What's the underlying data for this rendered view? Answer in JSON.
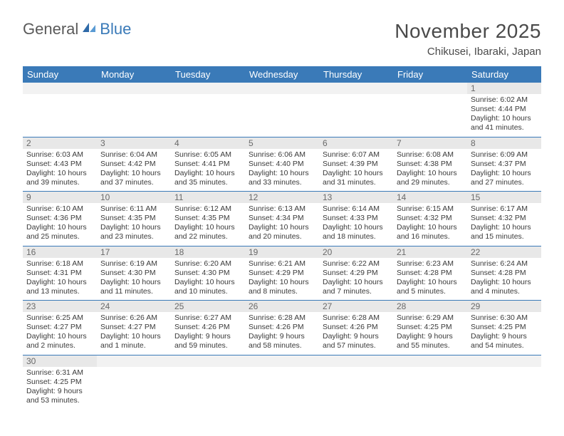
{
  "brand": {
    "part1": "General",
    "part2": "Blue"
  },
  "title": "November 2025",
  "location": "Chikusei, Ibaraki, Japan",
  "colors": {
    "header_bg": "#3a7ab8",
    "header_fg": "#ffffff",
    "daynum_bg": "#e8e8e8",
    "daynum_fg": "#6a6a6a",
    "rule": "#3a7ab8",
    "text": "#3a3a3a",
    "logo_gray": "#5a5a5a",
    "logo_blue": "#3a7ab8"
  },
  "day_headers": [
    "Sunday",
    "Monday",
    "Tuesday",
    "Wednesday",
    "Thursday",
    "Friday",
    "Saturday"
  ],
  "weeks": [
    [
      {
        "n": "",
        "sr": "",
        "ss": "",
        "dl": ""
      },
      {
        "n": "",
        "sr": "",
        "ss": "",
        "dl": ""
      },
      {
        "n": "",
        "sr": "",
        "ss": "",
        "dl": ""
      },
      {
        "n": "",
        "sr": "",
        "ss": "",
        "dl": ""
      },
      {
        "n": "",
        "sr": "",
        "ss": "",
        "dl": ""
      },
      {
        "n": "",
        "sr": "",
        "ss": "",
        "dl": ""
      },
      {
        "n": "1",
        "sr": "Sunrise: 6:02 AM",
        "ss": "Sunset: 4:44 PM",
        "dl": "Daylight: 10 hours and 41 minutes."
      }
    ],
    [
      {
        "n": "2",
        "sr": "Sunrise: 6:03 AM",
        "ss": "Sunset: 4:43 PM",
        "dl": "Daylight: 10 hours and 39 minutes."
      },
      {
        "n": "3",
        "sr": "Sunrise: 6:04 AM",
        "ss": "Sunset: 4:42 PM",
        "dl": "Daylight: 10 hours and 37 minutes."
      },
      {
        "n": "4",
        "sr": "Sunrise: 6:05 AM",
        "ss": "Sunset: 4:41 PM",
        "dl": "Daylight: 10 hours and 35 minutes."
      },
      {
        "n": "5",
        "sr": "Sunrise: 6:06 AM",
        "ss": "Sunset: 4:40 PM",
        "dl": "Daylight: 10 hours and 33 minutes."
      },
      {
        "n": "6",
        "sr": "Sunrise: 6:07 AM",
        "ss": "Sunset: 4:39 PM",
        "dl": "Daylight: 10 hours and 31 minutes."
      },
      {
        "n": "7",
        "sr": "Sunrise: 6:08 AM",
        "ss": "Sunset: 4:38 PM",
        "dl": "Daylight: 10 hours and 29 minutes."
      },
      {
        "n": "8",
        "sr": "Sunrise: 6:09 AM",
        "ss": "Sunset: 4:37 PM",
        "dl": "Daylight: 10 hours and 27 minutes."
      }
    ],
    [
      {
        "n": "9",
        "sr": "Sunrise: 6:10 AM",
        "ss": "Sunset: 4:36 PM",
        "dl": "Daylight: 10 hours and 25 minutes."
      },
      {
        "n": "10",
        "sr": "Sunrise: 6:11 AM",
        "ss": "Sunset: 4:35 PM",
        "dl": "Daylight: 10 hours and 23 minutes."
      },
      {
        "n": "11",
        "sr": "Sunrise: 6:12 AM",
        "ss": "Sunset: 4:35 PM",
        "dl": "Daylight: 10 hours and 22 minutes."
      },
      {
        "n": "12",
        "sr": "Sunrise: 6:13 AM",
        "ss": "Sunset: 4:34 PM",
        "dl": "Daylight: 10 hours and 20 minutes."
      },
      {
        "n": "13",
        "sr": "Sunrise: 6:14 AM",
        "ss": "Sunset: 4:33 PM",
        "dl": "Daylight: 10 hours and 18 minutes."
      },
      {
        "n": "14",
        "sr": "Sunrise: 6:15 AM",
        "ss": "Sunset: 4:32 PM",
        "dl": "Daylight: 10 hours and 16 minutes."
      },
      {
        "n": "15",
        "sr": "Sunrise: 6:17 AM",
        "ss": "Sunset: 4:32 PM",
        "dl": "Daylight: 10 hours and 15 minutes."
      }
    ],
    [
      {
        "n": "16",
        "sr": "Sunrise: 6:18 AM",
        "ss": "Sunset: 4:31 PM",
        "dl": "Daylight: 10 hours and 13 minutes."
      },
      {
        "n": "17",
        "sr": "Sunrise: 6:19 AM",
        "ss": "Sunset: 4:30 PM",
        "dl": "Daylight: 10 hours and 11 minutes."
      },
      {
        "n": "18",
        "sr": "Sunrise: 6:20 AM",
        "ss": "Sunset: 4:30 PM",
        "dl": "Daylight: 10 hours and 10 minutes."
      },
      {
        "n": "19",
        "sr": "Sunrise: 6:21 AM",
        "ss": "Sunset: 4:29 PM",
        "dl": "Daylight: 10 hours and 8 minutes."
      },
      {
        "n": "20",
        "sr": "Sunrise: 6:22 AM",
        "ss": "Sunset: 4:29 PM",
        "dl": "Daylight: 10 hours and 7 minutes."
      },
      {
        "n": "21",
        "sr": "Sunrise: 6:23 AM",
        "ss": "Sunset: 4:28 PM",
        "dl": "Daylight: 10 hours and 5 minutes."
      },
      {
        "n": "22",
        "sr": "Sunrise: 6:24 AM",
        "ss": "Sunset: 4:28 PM",
        "dl": "Daylight: 10 hours and 4 minutes."
      }
    ],
    [
      {
        "n": "23",
        "sr": "Sunrise: 6:25 AM",
        "ss": "Sunset: 4:27 PM",
        "dl": "Daylight: 10 hours and 2 minutes."
      },
      {
        "n": "24",
        "sr": "Sunrise: 6:26 AM",
        "ss": "Sunset: 4:27 PM",
        "dl": "Daylight: 10 hours and 1 minute."
      },
      {
        "n": "25",
        "sr": "Sunrise: 6:27 AM",
        "ss": "Sunset: 4:26 PM",
        "dl": "Daylight: 9 hours and 59 minutes."
      },
      {
        "n": "26",
        "sr": "Sunrise: 6:28 AM",
        "ss": "Sunset: 4:26 PM",
        "dl": "Daylight: 9 hours and 58 minutes."
      },
      {
        "n": "27",
        "sr": "Sunrise: 6:28 AM",
        "ss": "Sunset: 4:26 PM",
        "dl": "Daylight: 9 hours and 57 minutes."
      },
      {
        "n": "28",
        "sr": "Sunrise: 6:29 AM",
        "ss": "Sunset: 4:25 PM",
        "dl": "Daylight: 9 hours and 55 minutes."
      },
      {
        "n": "29",
        "sr": "Sunrise: 6:30 AM",
        "ss": "Sunset: 4:25 PM",
        "dl": "Daylight: 9 hours and 54 minutes."
      }
    ],
    [
      {
        "n": "30",
        "sr": "Sunrise: 6:31 AM",
        "ss": "Sunset: 4:25 PM",
        "dl": "Daylight: 9 hours and 53 minutes."
      },
      {
        "n": "",
        "sr": "",
        "ss": "",
        "dl": ""
      },
      {
        "n": "",
        "sr": "",
        "ss": "",
        "dl": ""
      },
      {
        "n": "",
        "sr": "",
        "ss": "",
        "dl": ""
      },
      {
        "n": "",
        "sr": "",
        "ss": "",
        "dl": ""
      },
      {
        "n": "",
        "sr": "",
        "ss": "",
        "dl": ""
      },
      {
        "n": "",
        "sr": "",
        "ss": "",
        "dl": ""
      }
    ]
  ]
}
